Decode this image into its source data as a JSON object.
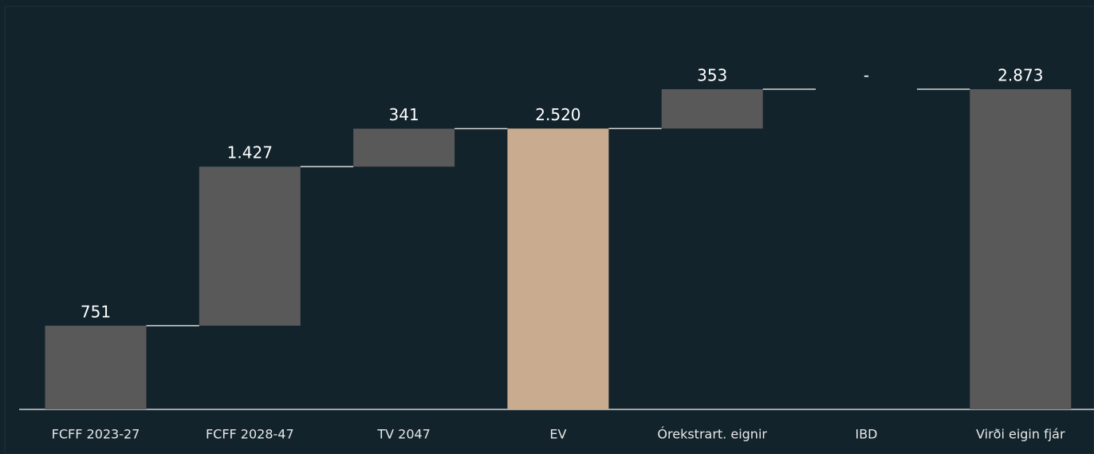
{
  "chart_data": {
    "type": "waterfall",
    "categories": [
      "FCFF 2023-27",
      "FCFF 2028-47",
      "TV 2047",
      "EV",
      "Órekstrart. eignir",
      "IBD",
      "Virði eigin fjár"
    ],
    "values": [
      751,
      1427,
      341,
      2520,
      353,
      0,
      2873
    ],
    "value_labels": [
      "751",
      "1.427",
      "341",
      "2.520",
      "353",
      "-",
      "2.873"
    ],
    "measure": [
      "relative",
      "relative",
      "relative",
      "total",
      "relative",
      "relative",
      "total"
    ],
    "colors": [
      "#595959",
      "#595959",
      "#595959",
      "#c9ab8f",
      "#595959",
      "#595959",
      "#595959"
    ],
    "grid": false
  }
}
